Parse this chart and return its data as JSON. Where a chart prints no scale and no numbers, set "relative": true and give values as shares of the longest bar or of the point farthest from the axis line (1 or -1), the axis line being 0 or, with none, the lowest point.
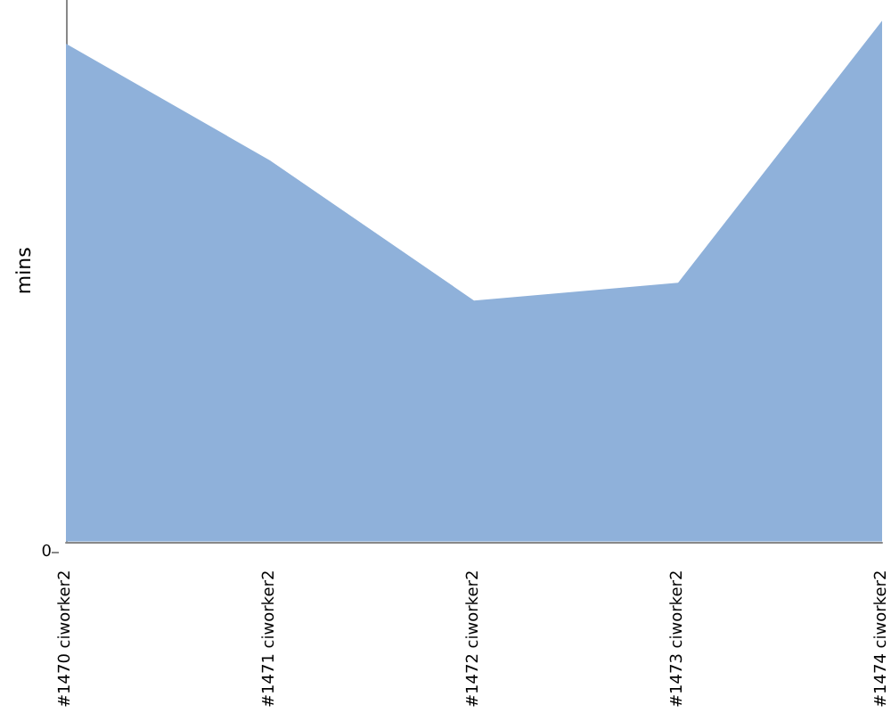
{
  "chart_data": {
    "type": "area",
    "ylabel": "mins",
    "relative": true,
    "grid": false,
    "annotations": [
      "0"
    ],
    "categories": [
      "#1470 ciworker2",
      "#1471 ciworker2",
      "#1472 ciworker2",
      "#1473 ciworker2",
      "#1474 ciworker2"
    ],
    "series": [
      {
        "color": "#8fb1da",
        "values": [
          0.956,
          0.732,
          0.463,
          0.497,
          1
        ]
      }
    ]
  }
}
